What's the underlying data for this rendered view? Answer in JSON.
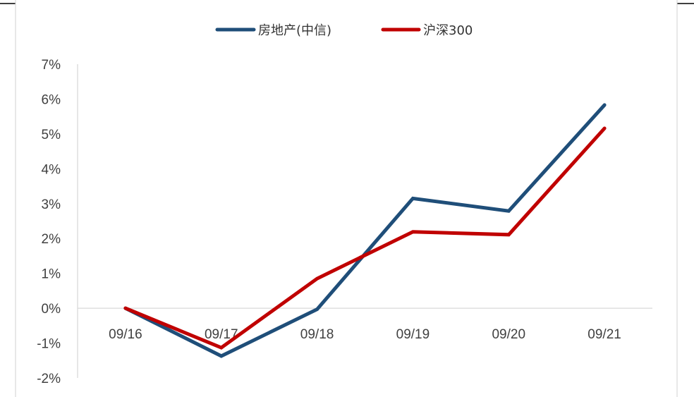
{
  "chart_data": {
    "type": "line",
    "categories": [
      "09/16",
      "09/17",
      "09/18",
      "09/19",
      "09/20",
      "09/21"
    ],
    "series": [
      {
        "name": "房地产(中信)",
        "color": "#1f4e79",
        "values": [
          0.0,
          -1.37,
          -0.03,
          3.15,
          2.79,
          5.83
        ]
      },
      {
        "name": "沪深300",
        "color": "#c00000",
        "values": [
          0.0,
          -1.13,
          0.85,
          2.19,
          2.11,
          5.16
        ]
      }
    ],
    "ylim": [
      -2,
      7
    ],
    "yticks": [
      -2,
      -1,
      0,
      1,
      2,
      3,
      4,
      5,
      6,
      7
    ],
    "ytick_suffix": "%",
    "title": "",
    "xlabel": "",
    "ylabel": "",
    "legend_position": "top-center",
    "grid": false
  }
}
